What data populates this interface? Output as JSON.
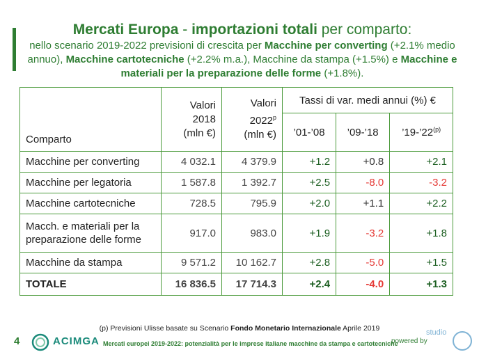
{
  "title": {
    "bold": "Mercati Europa",
    "sep": " - ",
    "bold2": "importazioni totali",
    "rest": " per comparto:"
  },
  "subtitle": {
    "p1": "nello scenario 2019-2022 previsioni di crescita per ",
    "b1": "Macchine per converting",
    "p2": " (+2.1% medio annuo), ",
    "b2": "Macchine cartotecniche",
    "p3": " (+2.2% m.a.), Macchine da stampa (+1.5%) e ",
    "b3": "Macchine e materiali per la preparazione delle forme",
    "p4": " (+1.8%)."
  },
  "table": {
    "col_comparto": "Comparto",
    "col_2018_l1": "Valori",
    "col_2018_l2": "2018",
    "col_2018_l3": "(mln €)",
    "col_2022_l1": "Valori",
    "col_2022_l2": "2022",
    "col_2022_sup": "p",
    "col_2022_l3": "(mln €)",
    "col_tassi": "Tassi di var. medi annui (%) €",
    "period1": "’01-’08",
    "period2": "’09-’18",
    "period3": "’19-’22",
    "period3_sup": "(p)",
    "rows": [
      {
        "label": "Macchine per converting",
        "v2018": "4 032.1",
        "v2022": "4 379.9",
        "r1": "+1.2",
        "r2": "+0.8",
        "r3": "+2.1"
      },
      {
        "label": "Macchine per legatoria",
        "v2018": "1 587.8",
        "v2022": "1 392.7",
        "r1": "+2.5",
        "r2": "-8.0",
        "r3": "-3.2"
      },
      {
        "label": "Macchine cartotecniche",
        "v2018": "728.5",
        "v2022": "795.9",
        "r1": "+2.0",
        "r2": "+1.1",
        "r3": "+2.2"
      },
      {
        "label_l1": "Macch. e materiali per la",
        "label_l2": "preparazione delle forme",
        "v2018": "917.0",
        "v2022": "983.0",
        "r1": "+1.9",
        "r2": "-3.2",
        "r3": "+1.8"
      },
      {
        "label": "Macchine da stampa",
        "v2018": "9 571.2",
        "v2022": "10 162.7",
        "r1": "+2.8",
        "r2": "-5.0",
        "r3": "+1.5"
      }
    ],
    "total": {
      "label": "TOTALE",
      "v2018": "16 836.5",
      "v2022": "17 714.3",
      "r1": "+2.4",
      "r2": "-4.0",
      "r3": "+1.3"
    }
  },
  "footnote": {
    "p1": "(p) Previsioni Ulisse basate su Scenario ",
    "b1": "Fondo Monetario  Internazionale",
    "p2": " Aprile 2019"
  },
  "footer": {
    "page_number": "4",
    "logo": "ACIMGA",
    "text": "Mercati europei 2019-2022: potenzialità per le imprese italiane macchine da stampa e cartotecniche",
    "powered": "powered by",
    "studio": "studio"
  },
  "colors": {
    "accent": "#2e7d32",
    "negative": "#e53935",
    "border": "#4a9a3a"
  }
}
